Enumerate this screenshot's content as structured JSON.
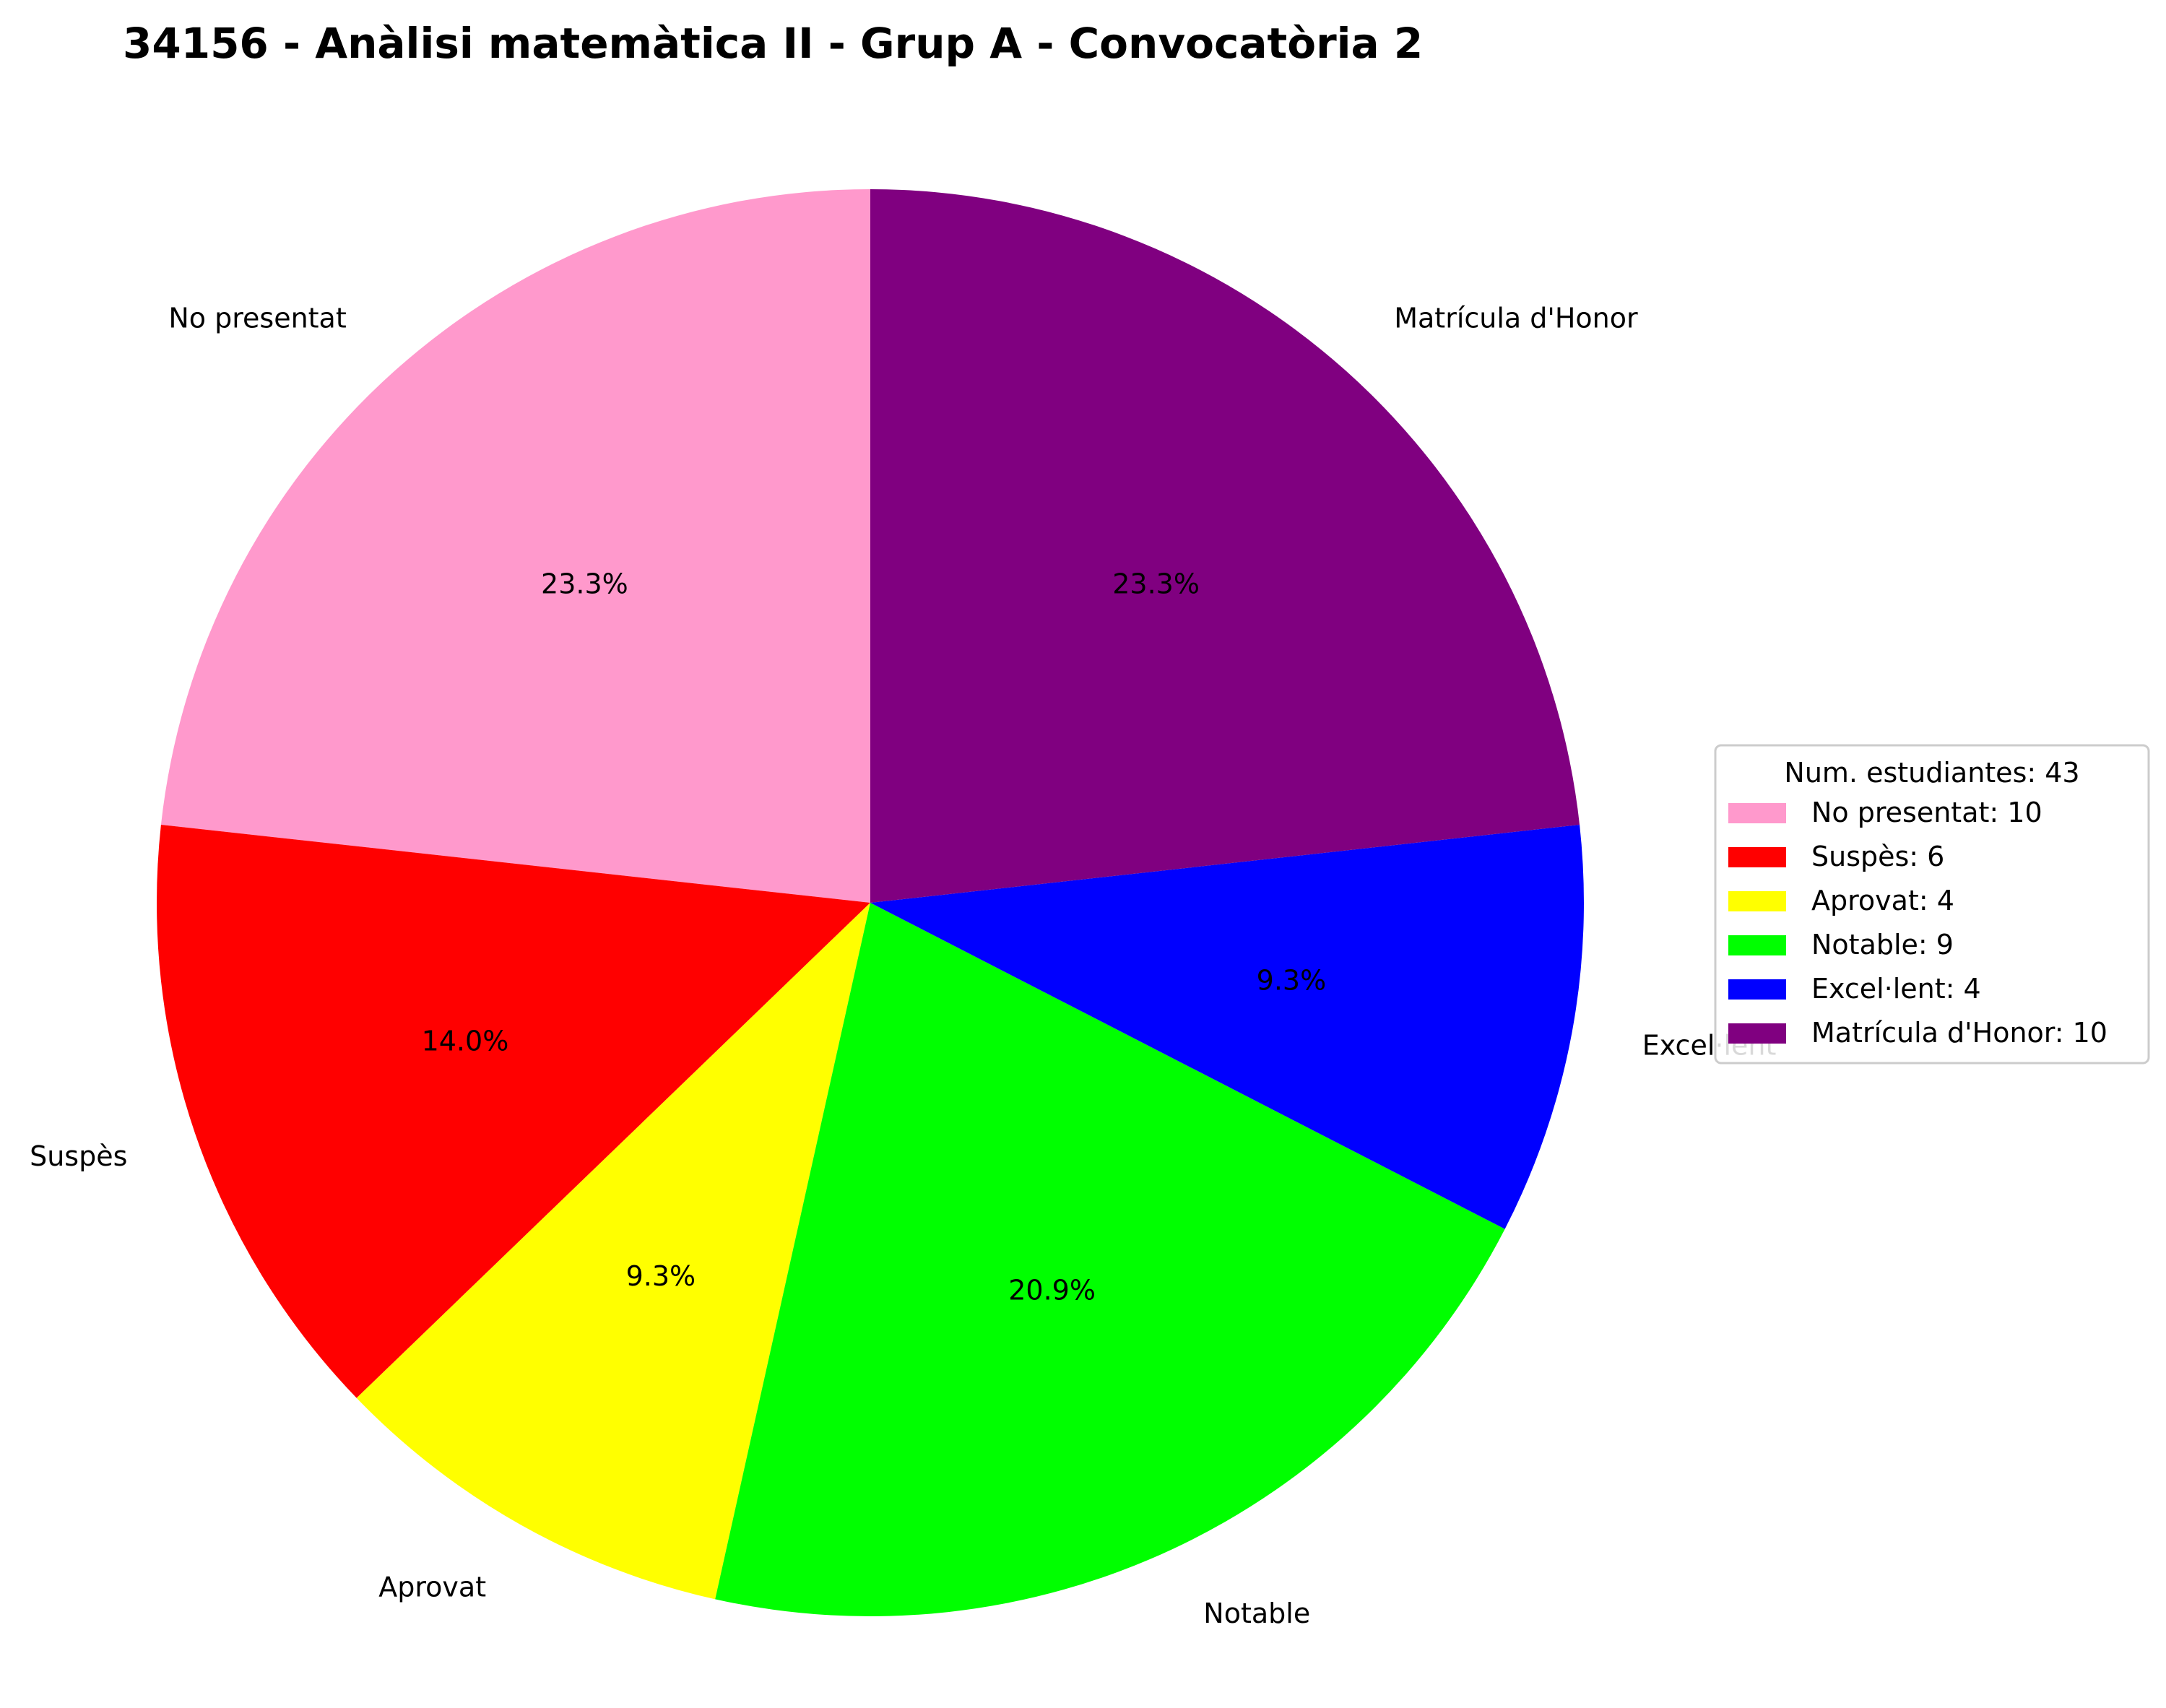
{
  "chart_data": {
    "type": "pie",
    "title": "34156 - Anàlisi matemàtica II - Grup A - Convocatòria 2",
    "categories": [
      "No presentat",
      "Suspès",
      "Aprovat",
      "Notable",
      "Excel·lent",
      "Matrícula d'Honor"
    ],
    "values": [
      10,
      6,
      4,
      9,
      4,
      10
    ],
    "percent_labels": [
      "23.3%",
      "14.0%",
      "9.3%",
      "20.9%",
      "9.3%",
      "23.3%"
    ],
    "colors": [
      "#ff99cc",
      "#ff0000",
      "#ffff00",
      "#00ff00",
      "#0000ff",
      "#800080"
    ],
    "start_angle_deg": 90,
    "direction": "counterclockwise",
    "legend": {
      "placement": "right",
      "title": "Num. estudiantes: 43",
      "entries": [
        "No presentat: 10",
        "Suspès: 6",
        "Aprovat: 4",
        "Notable: 9",
        "Excel·lent: 4",
        "Matrícula d'Honor: 10"
      ]
    }
  }
}
